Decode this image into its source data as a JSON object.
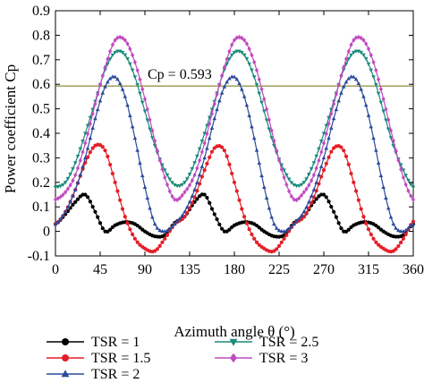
{
  "chart_data": {
    "type": "line",
    "xlabel": "Azimuth angle θ (°)",
    "ylabel": "Power coefficient Cp",
    "xlim": [
      0,
      360
    ],
    "ylim": [
      -0.1,
      0.9
    ],
    "x_ticks": [
      "0",
      "45",
      "90",
      "135",
      "180",
      "225",
      "270",
      "315",
      "360"
    ],
    "y_ticks": [
      "-0.1",
      "0",
      "0.1",
      "0.2",
      "0.3",
      "0.4",
      "0.5",
      "0.6",
      "0.7",
      "0.8",
      "0.9"
    ],
    "grid": false,
    "legend_position": "below-plot",
    "annotation": {
      "text": "Cp = 0.593",
      "value": 0.593,
      "color": "#8b8b3a"
    },
    "x": [
      0,
      10,
      20,
      30,
      40,
      50,
      60,
      70,
      80,
      90,
      100,
      110,
      120,
      130,
      140,
      150,
      160,
      170,
      180,
      190,
      200,
      210,
      220,
      230,
      240,
      250,
      260,
      270,
      280,
      290,
      300,
      310,
      320,
      330,
      340,
      350,
      360
    ],
    "series": [
      {
        "name": "TSR = 1",
        "color": "#000000",
        "marker": "circle",
        "values": [
          0.03,
          0.07,
          0.12,
          0.15,
          0.08,
          0.0,
          0.025,
          0.038,
          0.03,
          0.0,
          -0.02,
          -0.015,
          0.035,
          0.06,
          0.12,
          0.15,
          0.07,
          0.0,
          0.025,
          0.038,
          0.03,
          0.0,
          -0.02,
          -0.015,
          0.035,
          0.06,
          0.12,
          0.15,
          0.08,
          0.0,
          0.025,
          0.038,
          0.03,
          0.0,
          -0.02,
          -0.015,
          0.03
        ]
      },
      {
        "name": "TSR = 1.5",
        "color": "#e41e26",
        "marker": "circle",
        "values": [
          0.03,
          0.08,
          0.17,
          0.28,
          0.35,
          0.33,
          0.2,
          0.06,
          -0.03,
          -0.07,
          -0.08,
          -0.03,
          0.03,
          0.06,
          0.14,
          0.25,
          0.34,
          0.33,
          0.2,
          0.06,
          -0.03,
          -0.07,
          -0.08,
          -0.03,
          0.03,
          0.06,
          0.14,
          0.25,
          0.34,
          0.33,
          0.2,
          0.06,
          -0.03,
          -0.07,
          -0.08,
          -0.03,
          0.04
        ]
      },
      {
        "name": "TSR = 2",
        "color": "#2a4a9a",
        "marker": "triangle",
        "values": [
          0.03,
          0.08,
          0.17,
          0.3,
          0.46,
          0.59,
          0.63,
          0.55,
          0.38,
          0.18,
          0.03,
          0.0,
          0.03,
          0.08,
          0.17,
          0.3,
          0.46,
          0.59,
          0.63,
          0.55,
          0.38,
          0.18,
          0.03,
          0.0,
          0.03,
          0.08,
          0.17,
          0.3,
          0.46,
          0.59,
          0.63,
          0.55,
          0.38,
          0.18,
          0.03,
          0.0,
          0.03
        ]
      },
      {
        "name": "TSR = 2.5",
        "color": "#1a8a7a",
        "marker": "triangle-down",
        "values": [
          0.18,
          0.2,
          0.28,
          0.4,
          0.53,
          0.66,
          0.73,
          0.72,
          0.63,
          0.49,
          0.35,
          0.25,
          0.19,
          0.2,
          0.28,
          0.4,
          0.53,
          0.66,
          0.73,
          0.72,
          0.63,
          0.49,
          0.35,
          0.25,
          0.19,
          0.2,
          0.28,
          0.4,
          0.53,
          0.66,
          0.73,
          0.72,
          0.63,
          0.49,
          0.35,
          0.25,
          0.18
        ]
      },
      {
        "name": "TSR = 3",
        "color": "#c04ac0",
        "marker": "diamond",
        "values": [
          0.13,
          0.16,
          0.23,
          0.36,
          0.52,
          0.67,
          0.78,
          0.78,
          0.69,
          0.54,
          0.37,
          0.22,
          0.13,
          0.16,
          0.23,
          0.36,
          0.52,
          0.67,
          0.78,
          0.78,
          0.69,
          0.54,
          0.37,
          0.22,
          0.13,
          0.16,
          0.23,
          0.36,
          0.52,
          0.67,
          0.78,
          0.78,
          0.69,
          0.54,
          0.37,
          0.22,
          0.13
        ]
      }
    ]
  }
}
